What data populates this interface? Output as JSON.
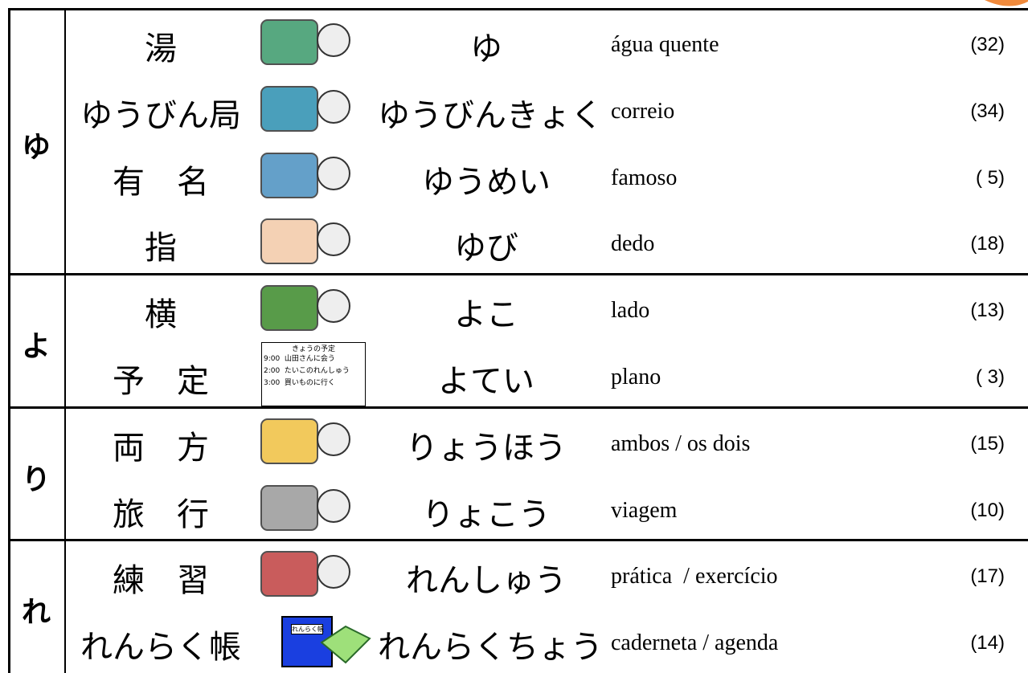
{
  "groups": [
    {
      "letter": "ゆ",
      "rows": [
        {
          "word": "湯",
          "reading": "ゆ",
          "meaning": "água quente",
          "page": "(32)"
        },
        {
          "word": "ゆうびん局",
          "reading": "ゆうびんきょく",
          "meaning": "correio",
          "page": "(34)"
        },
        {
          "word": "有　名",
          "reading": "ゆうめい",
          "meaning": "famoso",
          "page": "( 5)"
        },
        {
          "word": "指",
          "reading": "ゆび",
          "meaning": "dedo",
          "page": "(18)"
        }
      ]
    },
    {
      "letter": "よ",
      "rows": [
        {
          "word": "横",
          "reading": "よこ",
          "meaning": "lado",
          "page": "(13)"
        },
        {
          "word": "予　定",
          "reading": "よてい",
          "meaning": "plano",
          "page": "( 3)"
        }
      ]
    },
    {
      "letter": "り",
      "rows": [
        {
          "word": "両　方",
          "reading": "りょうほう",
          "meaning": "ambos / os dois",
          "page": "(15)"
        },
        {
          "word": "旅　行",
          "reading": "りょこう",
          "meaning": "viagem",
          "page": "(10)"
        }
      ]
    },
    {
      "letter": "れ",
      "rows": [
        {
          "word": "練　習",
          "reading": "れんしゅう",
          "meaning": "prática  / exercício",
          "page": "(17)"
        },
        {
          "word": "れんらく帳",
          "reading": "れんらくちょう",
          "meaning": "caderneta / agenda",
          "page": "(14)"
        }
      ]
    }
  ],
  "schedule": {
    "title": "きょうの予定",
    "lines": [
      "9:00  山田さんに会う",
      "2:00  たいこのれんしゅう",
      "3:00  買いものに行く"
    ]
  },
  "notebook_label": "れんらく帳"
}
